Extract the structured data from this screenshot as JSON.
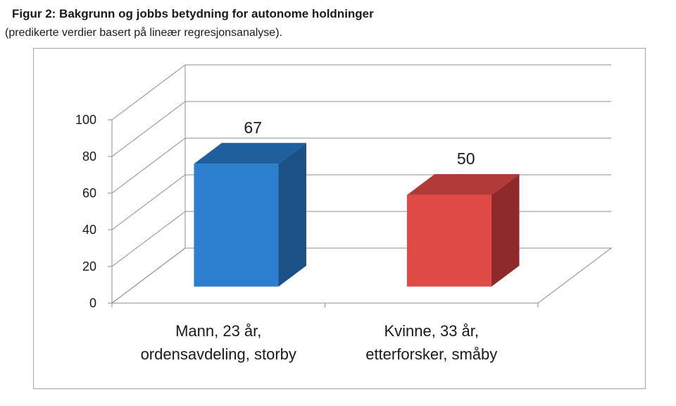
{
  "figure": {
    "title": "Figur 2: Bakgrunn og jobbs betydning for autonome holdninger",
    "subtitle": "(predikerte verdier basert på lineær regresjonsanalyse)."
  },
  "chart_data": {
    "type": "bar",
    "style": "3d-column",
    "title": "Figur 2: Bakgrunn og jobbs betydning for autonome holdninger",
    "subtitle": "(predikerte verdier basert på lineær regresjonsanalyse).",
    "categories": [
      [
        "Mann, 23 år,",
        "ordensavdeling, storby"
      ],
      [
        "Kvinne, 33 år,",
        "etterforsker, småby"
      ]
    ],
    "values": [
      67,
      50
    ],
    "data_labels": [
      "67",
      "50"
    ],
    "colors": [
      {
        "front": "#2b7fce",
        "side": "#1c5188",
        "top": "#1f5f9e"
      },
      {
        "front": "#e04b48",
        "side": "#8e2b2a",
        "top": "#b23a38"
      }
    ],
    "ylim": [
      0,
      100
    ],
    "yticks": [
      0,
      20,
      40,
      60,
      80,
      100
    ],
    "grid": true,
    "legend": "none",
    "xlabel": "",
    "ylabel": ""
  }
}
